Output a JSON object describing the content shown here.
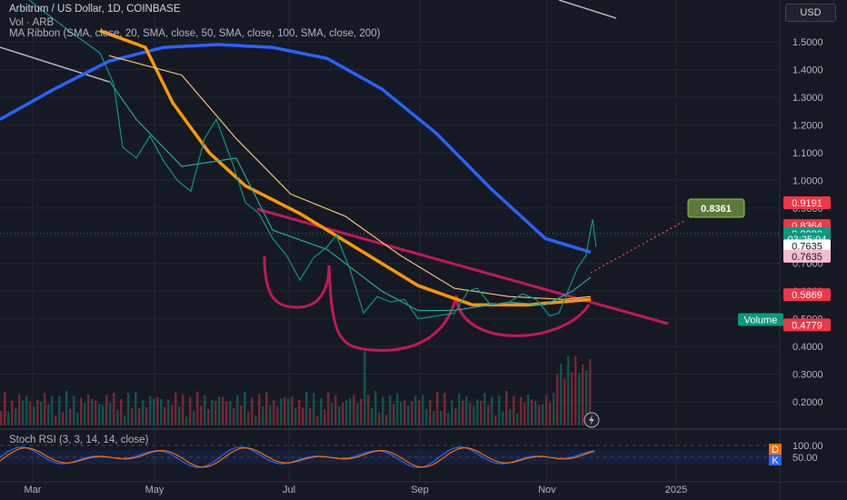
{
  "header": {
    "title": "Arbitrum / US Dollar, 1D, COINBASE",
    "volume_label": "Vol · ARB",
    "ma_label": "MA Ribbon (SMA, close, 20, SMA, close, 50, SMA, close, 100, SMA, close, 200)",
    "currency": "USD"
  },
  "indicators": {
    "stoch_label": "Stoch RSI (3, 3, 14, 14, close)",
    "stoch_ticks": [
      "100.00",
      "50.00"
    ],
    "d_badge": "D",
    "k_badge": "K"
  },
  "chart_data": {
    "type": "line",
    "x_ticks": [
      "Mar",
      "May",
      "Jul",
      "Sep",
      "Nov",
      "2025"
    ],
    "y_ticks": [
      "1.5000",
      "1.4000",
      "1.3000",
      "1.2000",
      "1.1000",
      "1.0000",
      "0.9000",
      "0.8000",
      "0.7000",
      "0.6000",
      "0.5000",
      "0.4000",
      "0.3000",
      "0.2000"
    ],
    "ylim": [
      0.15,
      1.65
    ],
    "price_tags": [
      {
        "label": "0.9191",
        "value": 0.9191,
        "color": "#f23645"
      },
      {
        "label": "0.8364",
        "value": 0.8364,
        "color": "#f23645"
      },
      {
        "label": "0.8080",
        "value": 0.808,
        "color": "#089981"
      },
      {
        "label": "03:25:04",
        "value": 0.788,
        "color": "#089981"
      },
      {
        "label": "0.7635",
        "value": 0.7635,
        "color": "#ffffff"
      },
      {
        "label": "0.7635",
        "value": 0.7255,
        "color": "#f8bbd0"
      },
      {
        "label": "0.5869",
        "value": 0.5869,
        "color": "#f23645"
      },
      {
        "label": "Volume",
        "value": 0.497,
        "color": "#089981"
      },
      {
        "label": "0.4779",
        "value": 0.4779,
        "color": "#f23645"
      }
    ],
    "target_label": "0.8361",
    "series": [
      {
        "name": "SMA 200",
        "color": "#2962ff",
        "points": [
          [
            0,
            1.22
          ],
          [
            60,
            1.33
          ],
          [
            120,
            1.43
          ],
          [
            180,
            1.48
          ],
          [
            240,
            1.49
          ],
          [
            300,
            1.48
          ],
          [
            360,
            1.44
          ],
          [
            420,
            1.33
          ],
          [
            480,
            1.17
          ],
          [
            540,
            0.97
          ],
          [
            600,
            0.79
          ],
          [
            650,
            0.74
          ]
        ]
      },
      {
        "name": "SMA 100",
        "color": "#ff9800",
        "points": [
          [
            110,
            1.54
          ],
          [
            160,
            1.48
          ],
          [
            190,
            1.28
          ],
          [
            230,
            1.1
          ],
          [
            270,
            0.98
          ],
          [
            330,
            0.88
          ],
          [
            400,
            0.74
          ],
          [
            460,
            0.62
          ],
          [
            520,
            0.55
          ],
          [
            580,
            0.55
          ],
          [
            650,
            0.57
          ]
        ]
      },
      {
        "name": "SMA 50",
        "color": "#f7c46c",
        "points": [
          [
            120,
            1.45
          ],
          [
            200,
            1.38
          ],
          [
            260,
            1.15
          ],
          [
            320,
            0.95
          ],
          [
            380,
            0.87
          ],
          [
            440,
            0.73
          ],
          [
            500,
            0.61
          ],
          [
            560,
            0.58
          ],
          [
            620,
            0.57
          ],
          [
            650,
            0.58
          ]
        ]
      },
      {
        "name": "SMA 20",
        "color": "#26a69a",
        "points": [
          [
            120,
            1.36
          ],
          [
            150,
            1.22
          ],
          [
            200,
            1.05
          ],
          [
            260,
            1.08
          ],
          [
            300,
            0.82
          ],
          [
            360,
            0.75
          ],
          [
            420,
            0.6
          ],
          [
            460,
            0.53
          ],
          [
            500,
            0.53
          ],
          [
            560,
            0.56
          ],
          [
            600,
            0.55
          ],
          [
            630,
            0.6
          ],
          [
            650,
            0.65
          ]
        ]
      }
    ],
    "price": {
      "name": "ARB",
      "color": "#089981",
      "points": [
        [
          0,
          1.74
        ],
        [
          40,
          1.63
        ],
        [
          80,
          1.53
        ],
        [
          110,
          1.46
        ],
        [
          125,
          1.35
        ],
        [
          135,
          1.12
        ],
        [
          150,
          1.08
        ],
        [
          165,
          1.16
        ],
        [
          180,
          1.07
        ],
        [
          195,
          1.0
        ],
        [
          210,
          0.96
        ],
        [
          225,
          1.15
        ],
        [
          238,
          1.22
        ],
        [
          255,
          1.07
        ],
        [
          270,
          0.92
        ],
        [
          285,
          0.88
        ],
        [
          300,
          0.79
        ],
        [
          315,
          0.73
        ],
        [
          330,
          0.64
        ],
        [
          345,
          0.72
        ],
        [
          360,
          0.76
        ],
        [
          370,
          0.8
        ],
        [
          385,
          0.68
        ],
        [
          400,
          0.52
        ],
        [
          415,
          0.58
        ],
        [
          430,
          0.56
        ],
        [
          445,
          0.57
        ],
        [
          460,
          0.5
        ],
        [
          480,
          0.51
        ],
        [
          500,
          0.52
        ],
        [
          515,
          0.6
        ],
        [
          525,
          0.61
        ],
        [
          540,
          0.55
        ],
        [
          560,
          0.56
        ],
        [
          575,
          0.59
        ],
        [
          590,
          0.57
        ],
        [
          605,
          0.51
        ],
        [
          615,
          0.52
        ],
        [
          625,
          0.6
        ],
        [
          635,
          0.68
        ],
        [
          645,
          0.73
        ],
        [
          652,
          0.86
        ],
        [
          656,
          0.76
        ]
      ]
    }
  }
}
